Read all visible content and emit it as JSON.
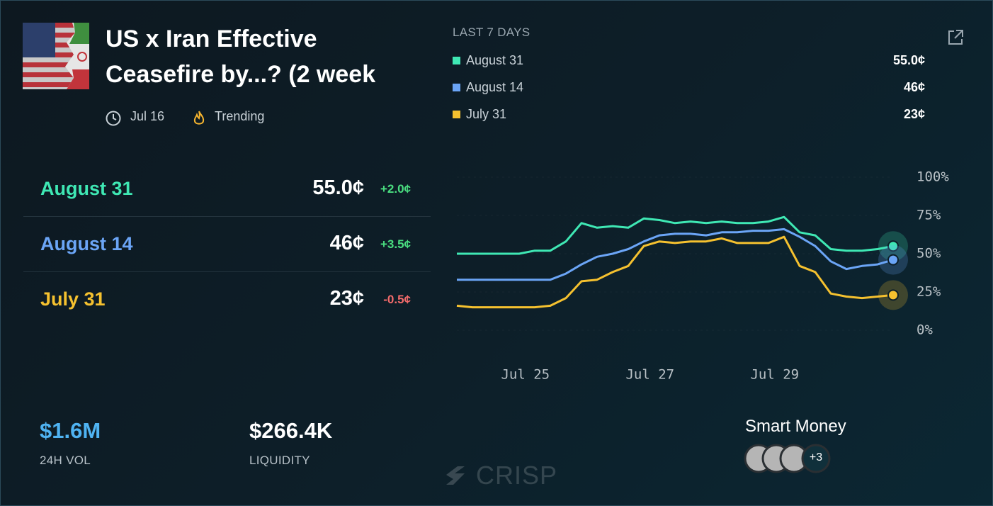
{
  "header": {
    "title": "US x Iran Effective Ceasefire by...? (2 week",
    "date": "Jul 16",
    "tag": "Trending"
  },
  "legend": {
    "title": "LAST 7 DAYS"
  },
  "outcomes": [
    {
      "price": "55.0¢",
      "change": "+2.0¢"
    },
    {
      "price": "46¢",
      "change": "+3.5¢"
    },
    {
      "price": "23¢",
      "change": "-0.5¢"
    }
  ],
  "stats": [
    {
      "value": "$1.6M",
      "label": "24H VOL"
    },
    {
      "value": "$266.4K",
      "label": "LIQUIDITY"
    }
  ],
  "smart_money": {
    "title": "Smart Money",
    "more": "+3"
  },
  "watermark": "CRISP",
  "chart_data": {
    "type": "line",
    "x": [
      23.9,
      24.15,
      24.4,
      24.65,
      24.9,
      25.15,
      25.4,
      25.65,
      25.9,
      26.15,
      26.4,
      26.65,
      26.9,
      27.15,
      27.4,
      27.65,
      27.9,
      28.15,
      28.4,
      28.65,
      28.9,
      29.15,
      29.4,
      29.65,
      29.9,
      30.15,
      30.4,
      30.65,
      30.9
    ],
    "series": [
      {
        "name": "August 31",
        "color": "#3fe8b4",
        "values": [
          50,
          50,
          50,
          50,
          50,
          52,
          52,
          58,
          70,
          67,
          68,
          67,
          73,
          72,
          70,
          71,
          70,
          71,
          70,
          70,
          71,
          74,
          64,
          62,
          53,
          52,
          52,
          53,
          55
        ]
      },
      {
        "name": "August 14",
        "color": "#6ba5f6",
        "values": [
          33,
          33,
          33,
          33,
          33,
          33,
          33,
          37,
          43,
          48,
          50,
          53,
          58,
          62,
          63,
          63,
          62,
          64,
          64,
          65,
          65,
          66,
          61,
          55,
          45,
          40,
          42,
          43,
          46
        ]
      },
      {
        "name": "July 31",
        "color": "#f5c12f",
        "values": [
          16,
          15,
          15,
          15,
          15,
          15,
          16,
          21,
          32,
          33,
          38,
          42,
          55,
          58,
          57,
          58,
          58,
          60,
          57,
          57,
          57,
          61,
          42,
          38,
          24,
          22,
          21,
          22,
          23
        ]
      }
    ],
    "xlim": [
      23.9,
      30.9
    ],
    "xticks": [
      {
        "value": 25,
        "label": "Jul 25"
      },
      {
        "value": 27,
        "label": "Jul 27"
      },
      {
        "value": 29,
        "label": "Jul 29"
      }
    ],
    "ylim": [
      0,
      100
    ],
    "yticks": [
      {
        "value": 0,
        "label": "0%"
      },
      {
        "value": 25,
        "label": "25%"
      },
      {
        "value": 50,
        "label": "50%"
      },
      {
        "value": 75,
        "label": "75%"
      },
      {
        "value": 100,
        "label": "100%"
      }
    ],
    "grid": true
  }
}
